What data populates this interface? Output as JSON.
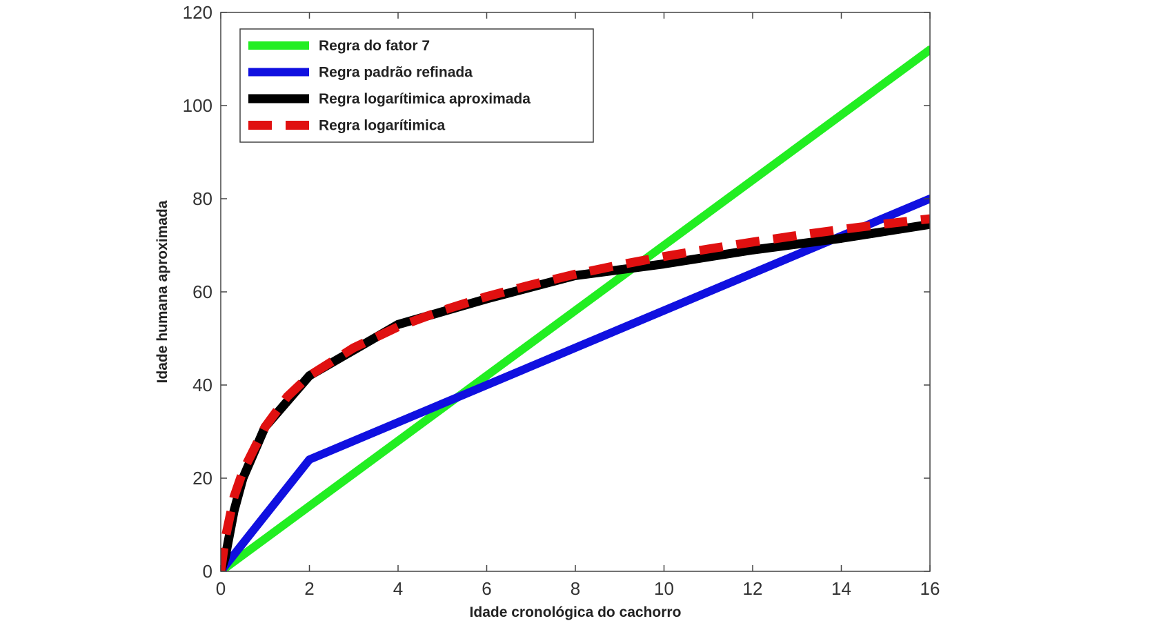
{
  "chart_data": {
    "type": "line",
    "title": "",
    "xlabel": "Idade cronológica do cachorro",
    "ylabel": "Idade humana aproximada",
    "xlim": [
      0,
      16
    ],
    "ylim": [
      0,
      120
    ],
    "xticks": [
      0,
      2,
      4,
      6,
      8,
      10,
      12,
      14,
      16
    ],
    "yticks": [
      0,
      20,
      40,
      60,
      80,
      100,
      120
    ],
    "grid": false,
    "legend_position": "top-left",
    "series": [
      {
        "name": "Regra do fator 7",
        "color": "#22ee22",
        "style": "solid",
        "x": [
          0,
          16
        ],
        "y": [
          0,
          112
        ]
      },
      {
        "name": "Regra padrão refinada",
        "color": "#1010e0",
        "style": "solid",
        "x": [
          0,
          2,
          16
        ],
        "y": [
          0,
          24,
          80
        ]
      },
      {
        "name": "Regra logarítimica aproximada",
        "color": "#000000",
        "style": "solid",
        "x": [
          0,
          0.1,
          0.3,
          0.5,
          1,
          2,
          4,
          6,
          8,
          10,
          12,
          14,
          16
        ],
        "y": [
          0,
          3,
          13,
          20,
          31,
          42,
          53,
          58.5,
          63.5,
          66,
          69,
          71.5,
          74.5
        ]
      },
      {
        "name": "Regra logarítimica",
        "color": "#e01010",
        "style": "dashed",
        "x": [
          0,
          0.1,
          0.3,
          0.5,
          1,
          1.5,
          2,
          3,
          4,
          5,
          6,
          7,
          8,
          9,
          10,
          11,
          12,
          13,
          14,
          15,
          16
        ],
        "y": [
          0,
          7,
          16,
          21.5,
          31,
          37.5,
          42,
          48,
          52.5,
          56,
          59,
          61.5,
          63.8,
          65.8,
          67.6,
          69.2,
          70.7,
          72.1,
          73.4,
          74.6,
          75.7
        ]
      }
    ]
  }
}
